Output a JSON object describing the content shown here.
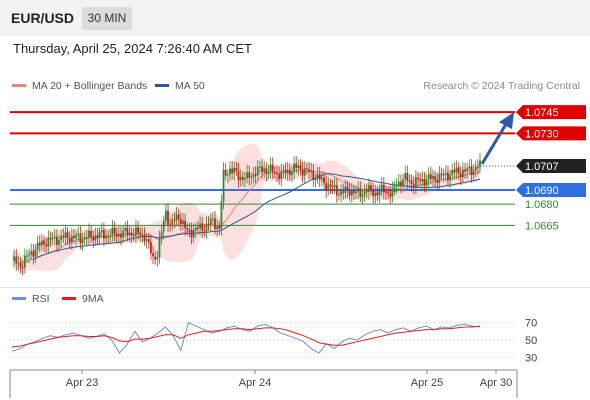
{
  "header": {
    "symbol": "EUR/USD",
    "timeframe": "30 MIN"
  },
  "timestamp": "Thursday, April 25, 2024 7:26:40 AM CET",
  "legend": {
    "ma20": {
      "label": "MA 20 + Bollinger Bands",
      "color": "#f08080"
    },
    "ma50": {
      "label": "MA 50",
      "color": "#2f5597"
    }
  },
  "credit": "Research © 2024 Trading Central",
  "rsi_legend": {
    "rsi": {
      "label": "RSI",
      "color": "#6b8fe0"
    },
    "ma": {
      "label": "9MA",
      "color": "#e02020"
    }
  },
  "chart_data": [
    {
      "type": "candlestick",
      "y_range": [
        1.0625,
        1.0755
      ],
      "x_ticks": [
        "Apr 23",
        "Apr 24",
        "Apr 25",
        "Apr 30"
      ],
      "current_price": {
        "value": 1.0707,
        "label": "1.0707",
        "color": "#222222"
      },
      "levels": [
        {
          "value": 1.0745,
          "label": "1.0745",
          "kind": "resistance",
          "color": "#e00000"
        },
        {
          "value": 1.073,
          "label": "1.0730",
          "kind": "resistance",
          "color": "#e00000"
        },
        {
          "value": 1.069,
          "label": "1.0690",
          "kind": "pivot",
          "color": "#2f6fe0"
        },
        {
          "value": 1.068,
          "label": "1.0680",
          "kind": "support",
          "color": "#2f8a2f"
        },
        {
          "value": 1.0665,
          "label": "1.0665",
          "kind": "support",
          "color": "#2f8a2f"
        }
      ],
      "path": [
        [
          0,
          1.064
        ],
        [
          4,
          1.0637
        ],
        [
          8,
          1.0644
        ],
        [
          12,
          1.065
        ],
        [
          16,
          1.0654
        ],
        [
          20,
          1.0655
        ],
        [
          26,
          1.0657
        ],
        [
          32,
          1.0656
        ],
        [
          40,
          1.0658
        ],
        [
          48,
          1.0659
        ],
        [
          56,
          1.066
        ],
        [
          62,
          1.0658
        ],
        [
          66,
          1.0642
        ],
        [
          68,
          1.0645
        ],
        [
          72,
          1.0675
        ],
        [
          74,
          1.0665
        ],
        [
          78,
          1.0672
        ],
        [
          82,
          1.066
        ],
        [
          86,
          1.0662
        ],
        [
          90,
          1.0664
        ],
        [
          94,
          1.0668
        ],
        [
          97,
          1.0663
        ],
        [
          99,
          1.07
        ],
        [
          102,
          1.0705
        ],
        [
          106,
          1.07
        ],
        [
          110,
          1.0698
        ],
        [
          114,
          1.0703
        ],
        [
          118,
          1.0705
        ],
        [
          122,
          1.0703
        ],
        [
          126,
          1.0701
        ],
        [
          130,
          1.0704
        ],
        [
          134,
          1.0706
        ],
        [
          138,
          1.0703
        ],
        [
          142,
          1.07
        ],
        [
          146,
          1.0695
        ],
        [
          150,
          1.0691
        ],
        [
          154,
          1.0688
        ],
        [
          158,
          1.069
        ],
        [
          162,
          1.0687
        ],
        [
          166,
          1.069
        ],
        [
          170,
          1.0688
        ],
        [
          174,
          1.069
        ],
        [
          178,
          1.0687
        ],
        [
          180,
          1.0695
        ],
        [
          184,
          1.0698
        ],
        [
          188,
          1.0695
        ],
        [
          192,
          1.0697
        ],
        [
          196,
          1.0698
        ],
        [
          200,
          1.0699
        ],
        [
          204,
          1.0701
        ],
        [
          208,
          1.0703
        ],
        [
          212,
          1.0703
        ],
        [
          216,
          1.0705
        ],
        [
          219,
          1.0707
        ]
      ],
      "projection": {
        "from": 1.0707,
        "to": 1.0745
      }
    },
    {
      "type": "line",
      "name": "RSI",
      "y_range": [
        20,
        80
      ],
      "y_ticks": [
        70,
        50,
        30
      ],
      "series": [
        {
          "name": "RSI",
          "values": [
            37,
            40,
            45,
            48,
            52,
            55,
            53,
            56,
            58,
            55,
            52,
            54,
            57,
            50,
            35,
            45,
            60,
            48,
            52,
            58,
            65,
            55,
            38,
            70,
            66,
            62,
            58,
            60,
            64,
            66,
            62,
            60,
            66,
            68,
            64,
            58,
            55,
            52,
            48,
            40,
            35,
            46,
            40,
            48,
            52,
            50,
            56,
            60,
            62,
            58,
            62,
            64,
            60,
            64,
            66,
            62,
            65,
            64,
            67,
            68,
            66,
            65
          ]
        },
        {
          "name": "9MA",
          "values": [
            42,
            43,
            45,
            47,
            49,
            51,
            53,
            54,
            55,
            55,
            54,
            54,
            55,
            53,
            49,
            48,
            51,
            51,
            52,
            54,
            56,
            56,
            52,
            56,
            58,
            60,
            60,
            61,
            62,
            63,
            63,
            62,
            63,
            64,
            64,
            63,
            61,
            58,
            55,
            51,
            47,
            45,
            44,
            44,
            46,
            48,
            50,
            52,
            54,
            56,
            58,
            59,
            60,
            61,
            62,
            62,
            63,
            63,
            64,
            65,
            65,
            66
          ]
        }
      ]
    }
  ]
}
